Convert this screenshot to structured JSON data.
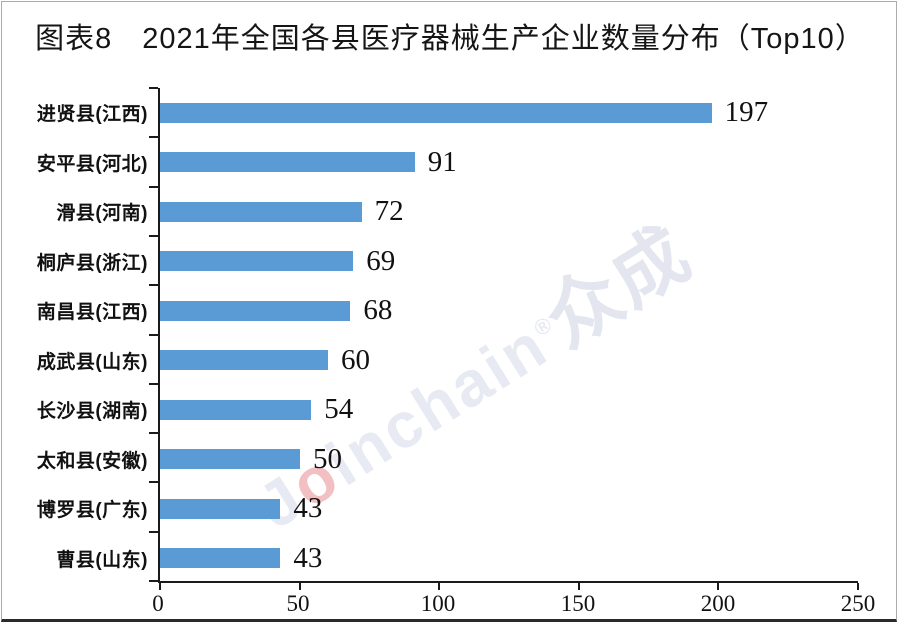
{
  "header": {
    "title": "图表8　2021年全国各县医疗器械生产企业数量分布（Top10）"
  },
  "watermark": {
    "prefix": "J",
    "accent": "o",
    "rest": "inchain",
    "reg": "®",
    "cjk": "众成"
  },
  "chart_data": {
    "type": "bar",
    "orientation": "horizontal",
    "title": "图表8 2021年全国各县医疗器械生产企业数量分布（Top10）",
    "categories": [
      "进贤县(江西)",
      "安平县(河北)",
      "滑县(河南)",
      "桐庐县(浙江)",
      "南昌县(江西)",
      "成武县(山东)",
      "长沙县(湖南)",
      "太和县(安徽)",
      "博罗县(广东)",
      "曹县(山东)"
    ],
    "values": [
      197,
      91,
      72,
      69,
      68,
      60,
      54,
      50,
      43,
      43
    ],
    "value_labels_shown": true,
    "xlabel": "",
    "ylabel": "",
    "xlim": [
      0,
      250
    ],
    "x_ticks": [
      0,
      50,
      100,
      150,
      200,
      250
    ],
    "grid": "off",
    "legend": "none",
    "bar_color": "#5B9BD5",
    "axis_color": "#1a1a1a"
  }
}
